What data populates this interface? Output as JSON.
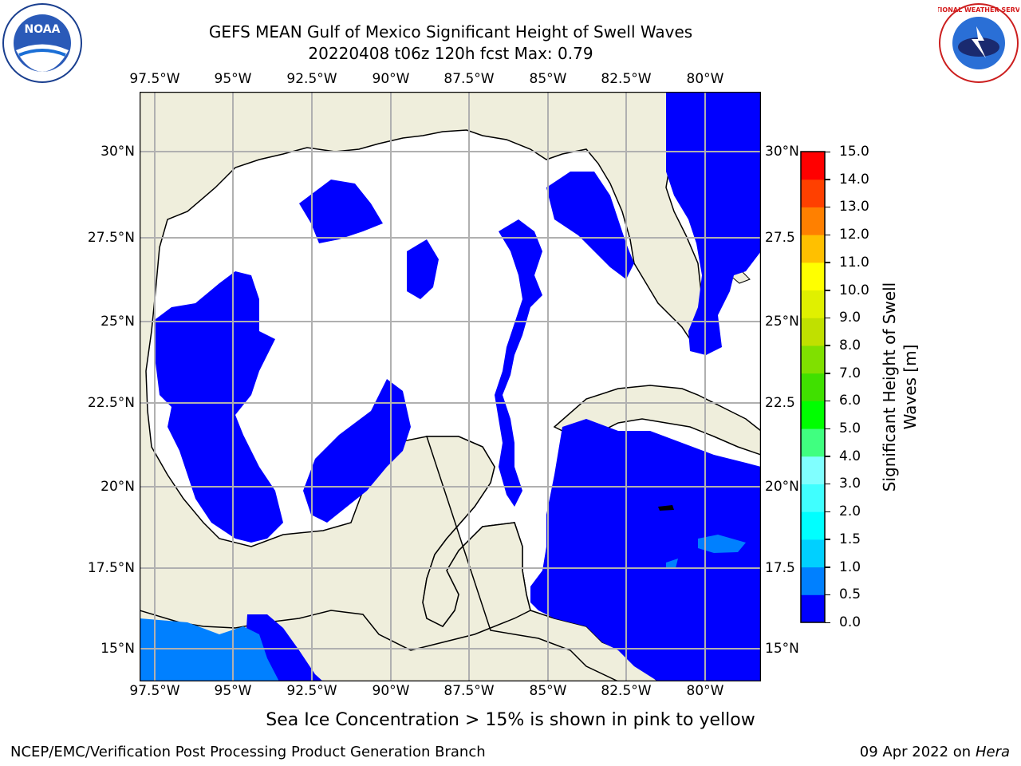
{
  "header": {
    "title_line1": "GEFS MEAN Gulf of Mexico Significant Height of Swell Waves",
    "title_line2": "20220408 t06z 120h fcst   Max: 0.79"
  },
  "map": {
    "lon_labels": [
      "97.5°W",
      "95°W",
      "92.5°W",
      "90°W",
      "87.5°W",
      "85°W",
      "82.5°W",
      "80°W"
    ],
    "lat_labels_left": [
      "30°N",
      "27.5°N",
      "25°N",
      "22.5°N",
      "20°N",
      "17.5°N",
      "15°N"
    ],
    "lat_labels_right": [
      "30°N",
      "27.5",
      "25°N",
      "22.5",
      "20°N",
      "17.5",
      "15°N"
    ],
    "colors": {
      "land": "#EFEEDC",
      "ocean_low": "#0000FF",
      "ocean_mid": "#0080FF",
      "below_threshold": "#FFFFFF",
      "grid": "#B0B0B0",
      "coast": "#000000"
    }
  },
  "colorbar": {
    "title_line1": "Significant Height of Swell",
    "title_line2": "Waves [m]",
    "ticks": [
      "0.0",
      "0.5",
      "1.0",
      "1.5",
      "2.0",
      "3.0",
      "4.0",
      "5.0",
      "6.0",
      "7.0",
      "8.0",
      "9.0",
      "10.0",
      "11.0",
      "12.0",
      "13.0",
      "14.0",
      "15.0"
    ],
    "colors": [
      "#0000FF",
      "#0080FF",
      "#00D0FF",
      "#00FFFF",
      "#40FFFF",
      "#80FFFF",
      "#40FF80",
      "#00FF00",
      "#40E000",
      "#80E000",
      "#C0E000",
      "#E0F000",
      "#FFFF00",
      "#FFC000",
      "#FF8000",
      "#FF4000",
      "#FF0000"
    ]
  },
  "footer": {
    "note": "Sea Ice Concentration > 15% is shown in pink to yellow",
    "credit": "NCEP/EMC/Verification Post Processing Product Generation Branch",
    "date_prefix": "09 Apr 2022 on ",
    "host": "Hera"
  },
  "logos": {
    "noaa_text": "NOAA",
    "nws_text": "NATIONAL WEATHER SERVICE"
  }
}
